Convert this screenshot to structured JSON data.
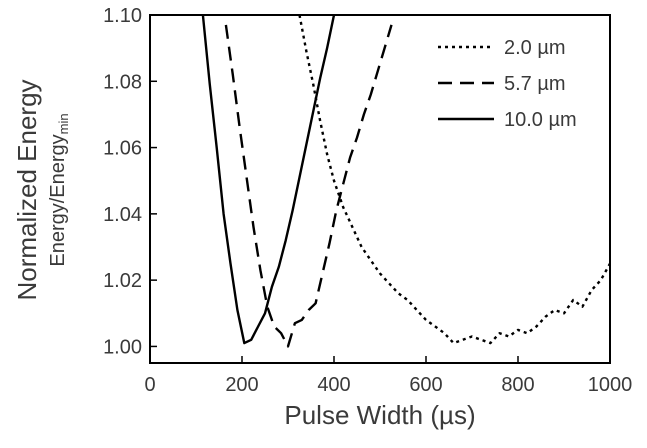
{
  "chart_data": {
    "type": "line",
    "xlabel": "Pulse Width (µs)",
    "ylabel": "Normalized Energy",
    "ylabel_line2": "Energy/Energy",
    "ylabel_line2_sub": "min",
    "xlim": [
      0,
      1000
    ],
    "ylim": [
      0.995,
      1.1
    ],
    "xticks": [
      0,
      200,
      400,
      600,
      800,
      1000
    ],
    "yticks": [
      1.0,
      1.02,
      1.04,
      1.06,
      1.08,
      1.1
    ],
    "ytick_labels": [
      "1.00",
      "1.02",
      "1.04",
      "1.06",
      "1.08",
      "1.10"
    ],
    "grid": false,
    "legend_position": "top-right",
    "series": [
      {
        "name": "2.0 µm",
        "style": "dotted",
        "x": [
          325,
          340,
          355,
          370,
          385,
          400,
          420,
          440,
          460,
          480,
          500,
          520,
          540,
          560,
          580,
          600,
          620,
          640,
          660,
          680,
          700,
          720,
          740,
          760,
          780,
          800,
          820,
          840,
          860,
          880,
          900,
          920,
          940,
          960,
          980,
          1000
        ],
        "y": [
          1.1,
          1.089,
          1.079,
          1.068,
          1.058,
          1.05,
          1.042,
          1.036,
          1.03,
          1.026,
          1.022,
          1.019,
          1.016,
          1.014,
          1.011,
          1.008,
          1.006,
          1.004,
          1.001,
          1.002,
          1.003,
          1.002,
          1.001,
          1.004,
          1.003,
          1.005,
          1.004,
          1.006,
          1.009,
          1.011,
          1.01,
          1.014,
          1.012,
          1.017,
          1.02,
          1.025
        ]
      },
      {
        "name": "5.7 µm",
        "style": "dashed",
        "x": [
          165,
          180,
          195,
          210,
          225,
          240,
          255,
          270,
          285,
          300,
          315,
          330,
          345,
          360,
          375,
          390,
          405,
          420,
          435,
          450,
          465,
          480,
          495,
          510,
          525
        ],
        "y": [
          1.097,
          1.082,
          1.066,
          1.051,
          1.036,
          1.023,
          1.012,
          1.006,
          1.004,
          1.0,
          1.007,
          1.008,
          1.011,
          1.013,
          1.022,
          1.031,
          1.041,
          1.049,
          1.057,
          1.063,
          1.07,
          1.076,
          1.083,
          1.09,
          1.097
        ]
      },
      {
        "name": "10.0 µm",
        "style": "solid",
        "x": [
          115,
          130,
          145,
          160,
          175,
          190,
          205,
          220,
          235,
          250,
          265,
          280,
          295,
          310,
          325,
          340,
          355,
          370,
          385,
          400
        ],
        "y": [
          1.1,
          1.079,
          1.06,
          1.04,
          1.025,
          1.011,
          1.001,
          1.002,
          1.006,
          1.01,
          1.018,
          1.024,
          1.032,
          1.041,
          1.051,
          1.061,
          1.071,
          1.081,
          1.09,
          1.1
        ]
      }
    ]
  }
}
